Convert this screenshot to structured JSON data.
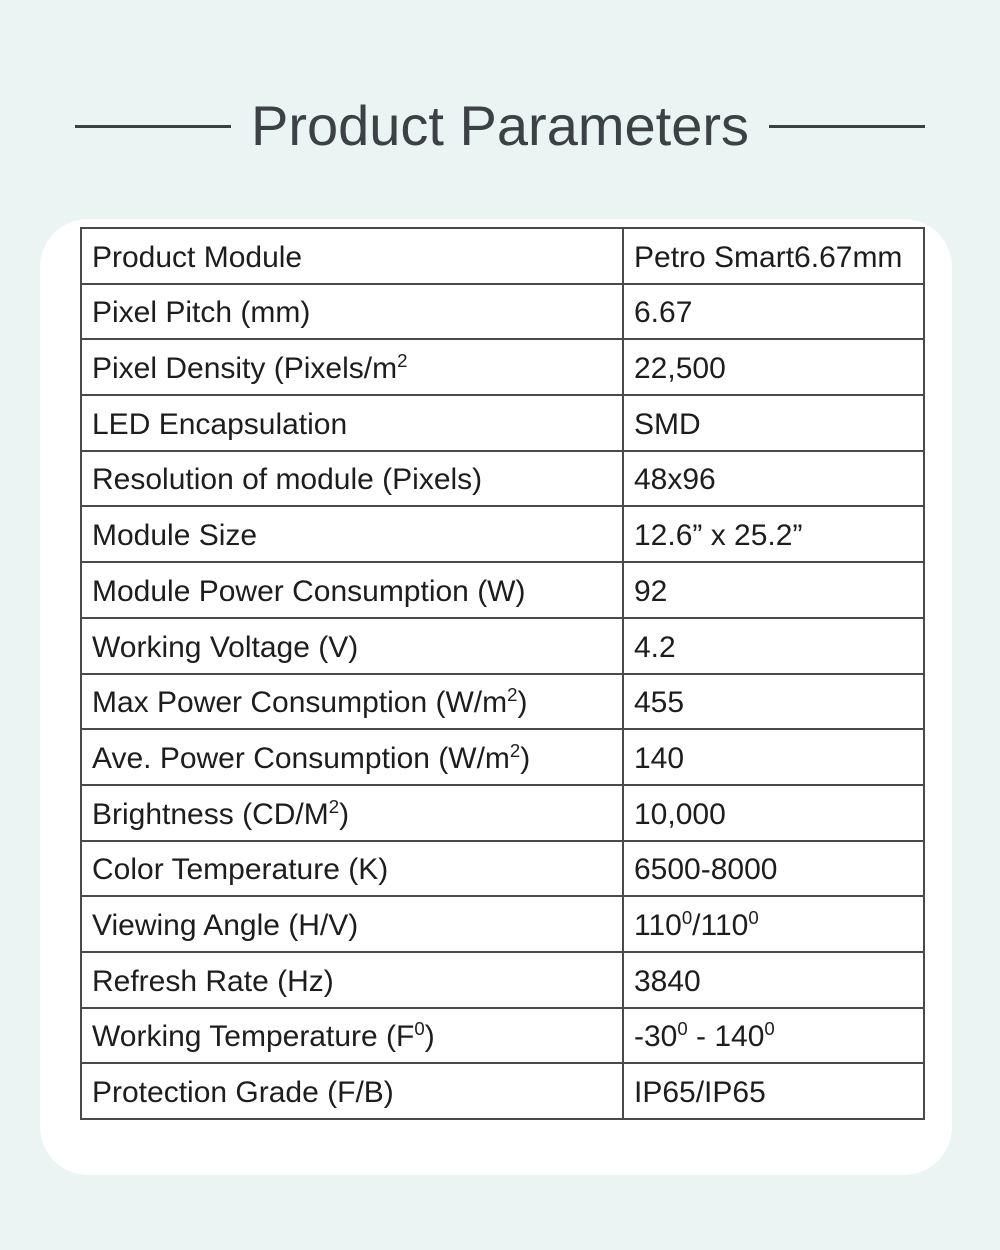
{
  "header": {
    "title": "Product Parameters"
  },
  "theme": {
    "background": "#e9f4f3",
    "card_background": "#ffffff",
    "title_color": "#3c4145",
    "table_border_color": "#4a4a4a",
    "text_color": "#1d1d1f"
  },
  "table": {
    "rows": [
      {
        "label": [
          [
            "t",
            "Product Module"
          ]
        ],
        "value": [
          [
            "t",
            "Petro Smart6.67mm"
          ]
        ]
      },
      {
        "label": [
          [
            "t",
            "Pixel Pitch (mm)"
          ]
        ],
        "value": [
          [
            "t",
            "6.67"
          ]
        ]
      },
      {
        "label": [
          [
            "t",
            "Pixel Density (Pixels/m"
          ],
          [
            "s",
            "2"
          ]
        ],
        "value": [
          [
            "t",
            "22,500"
          ]
        ]
      },
      {
        "label": [
          [
            "t",
            "LED Encapsulation"
          ]
        ],
        "value": [
          [
            "t",
            "SMD"
          ]
        ]
      },
      {
        "label": [
          [
            "t",
            "Resolution of module (Pixels)"
          ]
        ],
        "value": [
          [
            "t",
            "48x96"
          ]
        ]
      },
      {
        "label": [
          [
            "t",
            "Module Size"
          ]
        ],
        "value": [
          [
            "t",
            "12.6” x 25.2”"
          ]
        ]
      },
      {
        "label": [
          [
            "t",
            "Module Power Consumption (W)"
          ]
        ],
        "value": [
          [
            "t",
            "92"
          ]
        ]
      },
      {
        "label": [
          [
            "t",
            "Working Voltage (V)"
          ]
        ],
        "value": [
          [
            "t",
            "4.2"
          ]
        ]
      },
      {
        "label": [
          [
            "t",
            "Max Power Consumption (W/m"
          ],
          [
            "s",
            "2"
          ],
          [
            "t",
            ")"
          ]
        ],
        "value": [
          [
            "t",
            "455"
          ]
        ]
      },
      {
        "label": [
          [
            "t",
            "Ave. Power Consumption (W/m"
          ],
          [
            "s",
            "2"
          ],
          [
            "t",
            ")"
          ]
        ],
        "value": [
          [
            "t",
            "140"
          ]
        ]
      },
      {
        "label": [
          [
            "t",
            "Brightness (CD/M"
          ],
          [
            "s",
            "2"
          ],
          [
            "t",
            ")"
          ]
        ],
        "value": [
          [
            "t",
            "10,000"
          ]
        ]
      },
      {
        "label": [
          [
            "t",
            "Color Temperature (K)"
          ]
        ],
        "value": [
          [
            "t",
            "6500-8000"
          ]
        ]
      },
      {
        "label": [
          [
            "t",
            "Viewing Angle (H/V)"
          ]
        ],
        "value": [
          [
            "t",
            "110"
          ],
          [
            "s",
            "0"
          ],
          [
            "t",
            "/110"
          ],
          [
            "s",
            "0"
          ]
        ]
      },
      {
        "label": [
          [
            "t",
            "Refresh Rate (Hz)"
          ]
        ],
        "value": [
          [
            "t",
            "3840"
          ]
        ]
      },
      {
        "label": [
          [
            "t",
            "Working Temperature (F"
          ],
          [
            "s",
            "0"
          ],
          [
            "t",
            ")"
          ]
        ],
        "value": [
          [
            "t",
            "-30"
          ],
          [
            "s",
            "0"
          ],
          [
            "t",
            " - 140"
          ],
          [
            "s",
            "0"
          ]
        ]
      },
      {
        "label": [
          [
            "t",
            "Protection Grade (F/B)"
          ]
        ],
        "value": [
          [
            "t",
            "IP65/IP65"
          ]
        ]
      }
    ]
  }
}
